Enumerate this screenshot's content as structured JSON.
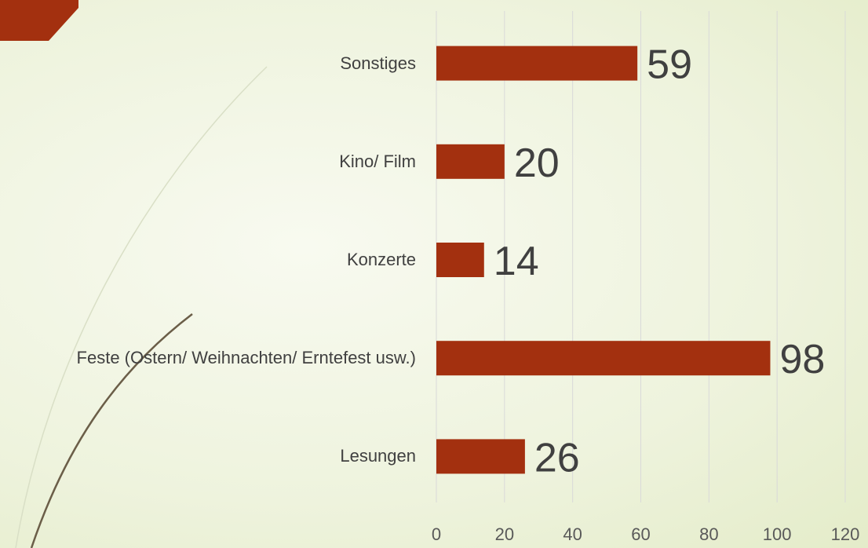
{
  "chart_data": {
    "type": "bar",
    "orientation": "horizontal",
    "categories": [
      "Sonstiges",
      "Kino/ Film",
      "Konzerte",
      "Feste (Ostern/ Weihnachten/ Erntefest usw.)",
      "Lesungen"
    ],
    "values": [
      59,
      20,
      14,
      98,
      26
    ],
    "color": "#a3300f",
    "xlim": [
      0,
      120
    ],
    "xticks": [
      0,
      20,
      40,
      60,
      80,
      100,
      120
    ],
    "grid": true
  }
}
